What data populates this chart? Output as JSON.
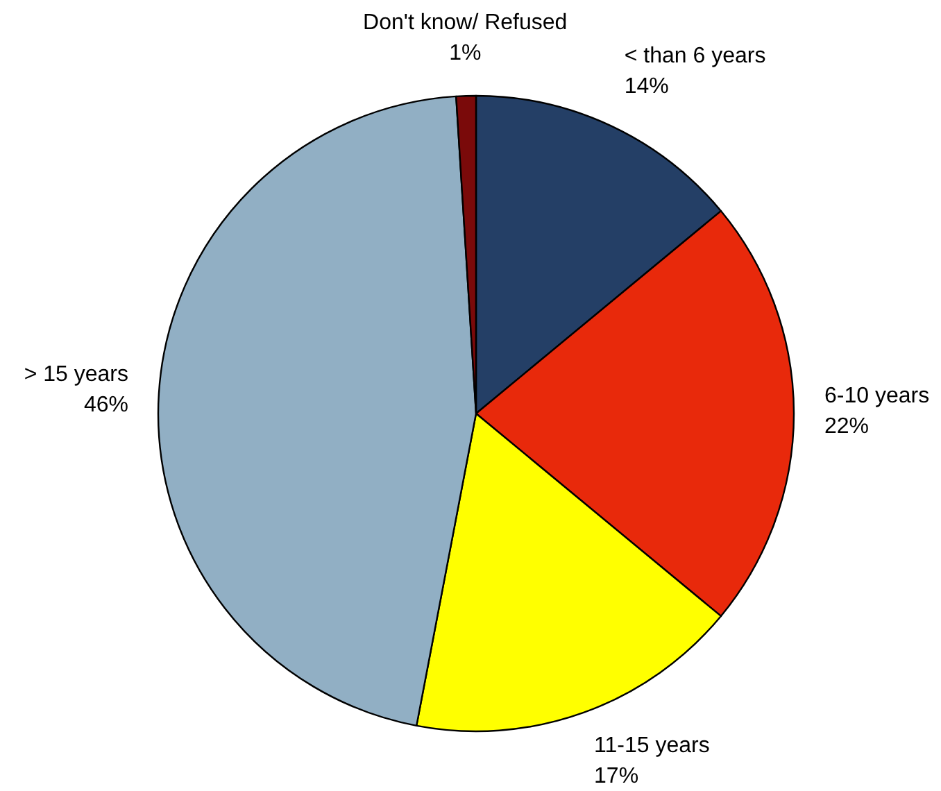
{
  "chart_data": {
    "type": "pie",
    "categories": [
      "< than 6 years",
      "6-10 years",
      "11-15 years",
      "> 15 years",
      "Don't know/ Refused"
    ],
    "values": [
      14,
      22,
      17,
      46,
      1
    ],
    "value_labels": [
      "14%",
      "22%",
      "17%",
      "46%",
      "1%"
    ],
    "colors": [
      "#243f66",
      "#e8290b",
      "#ffff00",
      "#91afc4",
      "#7a0a0a"
    ]
  }
}
